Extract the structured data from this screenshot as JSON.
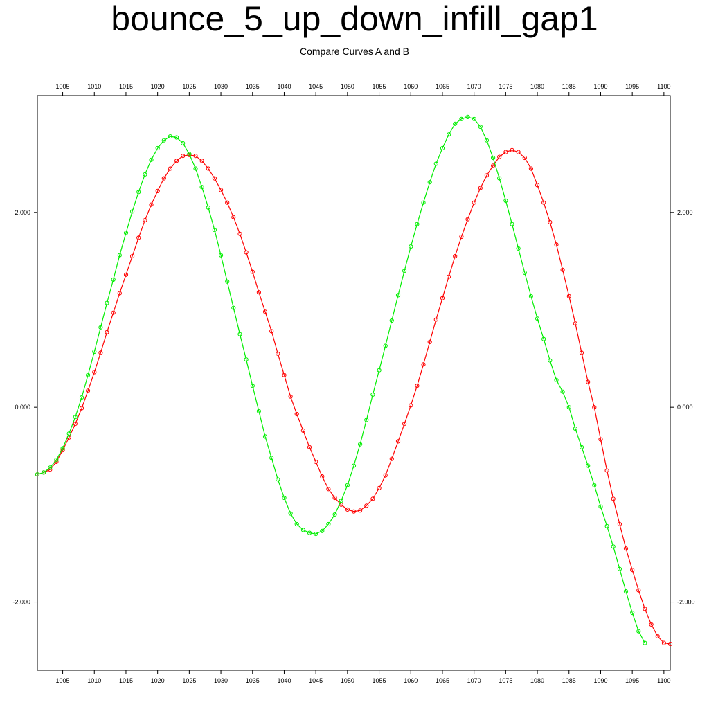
{
  "chart_data": {
    "type": "line",
    "title": "bounce_5_up_down_infill_gap1",
    "subtitle": "Compare Curves A and B",
    "xlim": [
      1001,
      1101
    ],
    "ylim": [
      -2.7,
      3.2
    ],
    "x_ticks": [
      1005,
      1010,
      1015,
      1020,
      1025,
      1030,
      1035,
      1040,
      1045,
      1050,
      1055,
      1060,
      1065,
      1070,
      1075,
      1080,
      1085,
      1090,
      1095,
      1100
    ],
    "y_ticks": [
      2.0,
      0.0,
      -2.0
    ],
    "y_tick_labels": [
      "2.000",
      "0.000",
      "-2.000"
    ],
    "grid": false,
    "series": [
      {
        "color": "#ff0000",
        "marker": "circle",
        "x_start": 1001,
        "x_step": 1,
        "values": [
          -0.69,
          -0.67,
          -0.64,
          -0.56,
          -0.44,
          -0.31,
          -0.17,
          -0.01,
          0.17,
          0.36,
          0.56,
          0.77,
          0.97,
          1.17,
          1.36,
          1.55,
          1.74,
          1.92,
          2.08,
          2.22,
          2.35,
          2.45,
          2.53,
          2.58,
          2.59,
          2.58,
          2.53,
          2.45,
          2.35,
          2.23,
          2.1,
          1.95,
          1.78,
          1.59,
          1.39,
          1.18,
          0.98,
          0.78,
          0.55,
          0.33,
          0.11,
          -0.07,
          -0.24,
          -0.41,
          -0.56,
          -0.71,
          -0.84,
          -0.93,
          -1.0,
          -1.05,
          -1.07,
          -1.06,
          -1.01,
          -0.94,
          -0.83,
          -0.7,
          -0.53,
          -0.35,
          -0.17,
          0.02,
          0.22,
          0.44,
          0.67,
          0.9,
          1.12,
          1.34,
          1.55,
          1.75,
          1.93,
          2.1,
          2.25,
          2.38,
          2.48,
          2.57,
          2.62,
          2.64,
          2.62,
          2.56,
          2.45,
          2.28,
          2.1,
          1.9,
          1.67,
          1.41,
          1.14,
          0.86,
          0.56,
          0.26,
          0.0,
          -0.33,
          -0.65,
          -0.94,
          -1.2,
          -1.45,
          -1.67,
          -1.88,
          -2.07,
          -2.23,
          -2.35,
          -2.42,
          -2.43
        ]
      },
      {
        "color": "#00ee00",
        "marker": "circle",
        "x_start": 1001,
        "x_step": 1,
        "values": [
          -0.69,
          -0.67,
          -0.62,
          -0.54,
          -0.42,
          -0.27,
          -0.1,
          0.1,
          0.33,
          0.57,
          0.82,
          1.07,
          1.31,
          1.56,
          1.79,
          2.01,
          2.21,
          2.39,
          2.54,
          2.66,
          2.74,
          2.78,
          2.77,
          2.71,
          2.6,
          2.45,
          2.26,
          2.05,
          1.82,
          1.56,
          1.29,
          1.02,
          0.75,
          0.49,
          0.22,
          -0.04,
          -0.3,
          -0.52,
          -0.74,
          -0.93,
          -1.09,
          -1.2,
          -1.26,
          -1.29,
          -1.3,
          -1.27,
          -1.2,
          -1.1,
          -0.96,
          -0.8,
          -0.6,
          -0.38,
          -0.13,
          0.13,
          0.38,
          0.63,
          0.89,
          1.15,
          1.4,
          1.65,
          1.88,
          2.1,
          2.31,
          2.5,
          2.66,
          2.8,
          2.91,
          2.96,
          2.98,
          2.96,
          2.88,
          2.74,
          2.56,
          2.35,
          2.12,
          1.88,
          1.63,
          1.38,
          1.14,
          0.91,
          0.7,
          0.48,
          0.28,
          0.16,
          0.0,
          -0.22,
          -0.41,
          -0.6,
          -0.8,
          -1.02,
          -1.22,
          -1.43,
          -1.66,
          -1.89,
          -2.11,
          -2.3,
          -2.42
        ]
      }
    ]
  }
}
